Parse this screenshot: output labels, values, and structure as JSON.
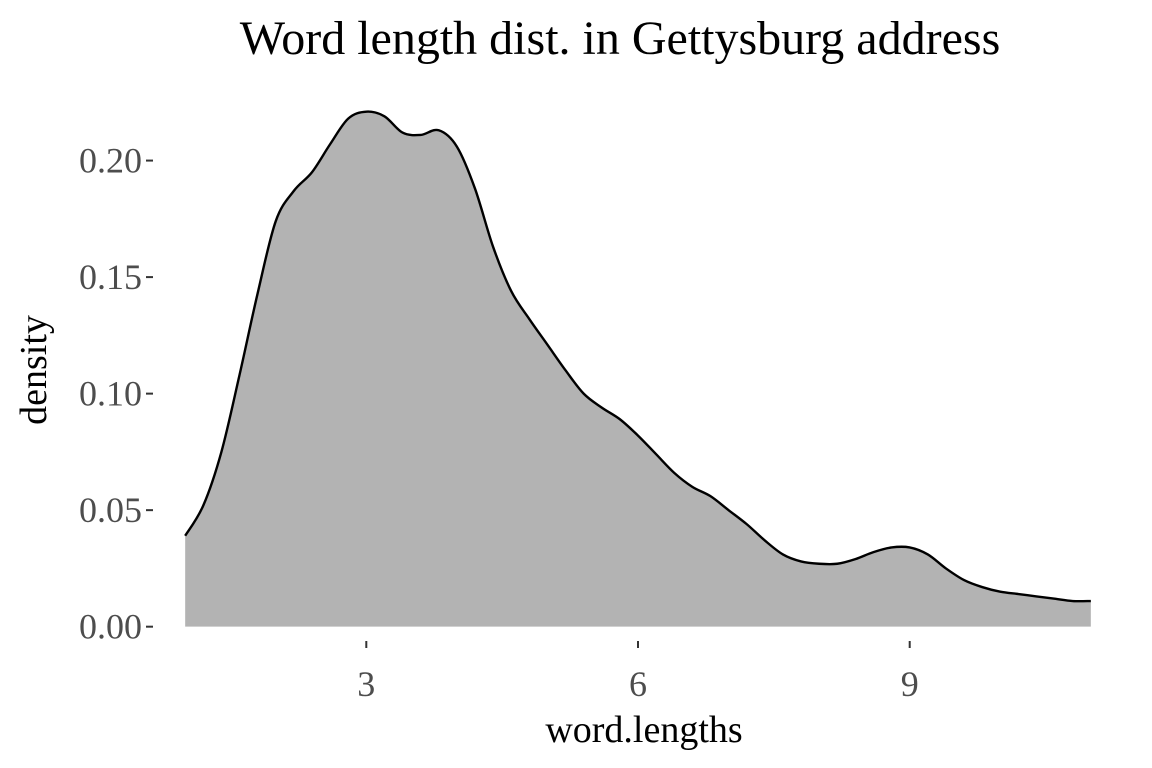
{
  "chart_data": {
    "type": "area",
    "title": "Word length dist. in Gettysburg address",
    "xlabel": "word.lengths",
    "ylabel": "density",
    "xlim": [
      0.7,
      11.3
    ],
    "ylim": [
      -0.004,
      0.232
    ],
    "x_ticks": [
      3,
      6,
      9
    ],
    "x_tick_labels": [
      "3",
      "6",
      "9"
    ],
    "y_ticks": [
      0,
      0.05,
      0.1,
      0.15,
      0.2
    ],
    "y_tick_labels": [
      "0.00",
      "0.05",
      "0.10",
      "0.15",
      "0.20"
    ],
    "grid": false,
    "fill_color": "#b3b3b3",
    "line_color": "#000000",
    "series": [
      {
        "x": [
          1.0,
          1.2,
          1.4,
          1.6,
          1.8,
          2.0,
          2.2,
          2.4,
          2.6,
          2.8,
          3.0,
          3.2,
          3.4,
          3.6,
          3.8,
          4.0,
          4.2,
          4.4,
          4.6,
          4.8,
          5.0,
          5.2,
          5.4,
          5.6,
          5.8,
          6.0,
          6.2,
          6.4,
          6.6,
          6.8,
          7.0,
          7.2,
          7.4,
          7.6,
          7.8,
          8.0,
          8.2,
          8.4,
          8.6,
          8.8,
          9.0,
          9.2,
          9.4,
          9.6,
          9.8,
          10.0,
          10.2,
          10.4,
          10.6,
          10.8,
          11.0
        ],
        "y": [
          0.039,
          0.052,
          0.075,
          0.108,
          0.143,
          0.174,
          0.187,
          0.195,
          0.207,
          0.218,
          0.221,
          0.219,
          0.212,
          0.211,
          0.213,
          0.206,
          0.188,
          0.163,
          0.144,
          0.132,
          0.121,
          0.11,
          0.1,
          0.094,
          0.089,
          0.082,
          0.074,
          0.066,
          0.06,
          0.056,
          0.05,
          0.044,
          0.037,
          0.031,
          0.028,
          0.027,
          0.027,
          0.029,
          0.032,
          0.034,
          0.034,
          0.031,
          0.025,
          0.02,
          0.017,
          0.015,
          0.014,
          0.013,
          0.012,
          0.011,
          0.011
        ]
      }
    ]
  }
}
